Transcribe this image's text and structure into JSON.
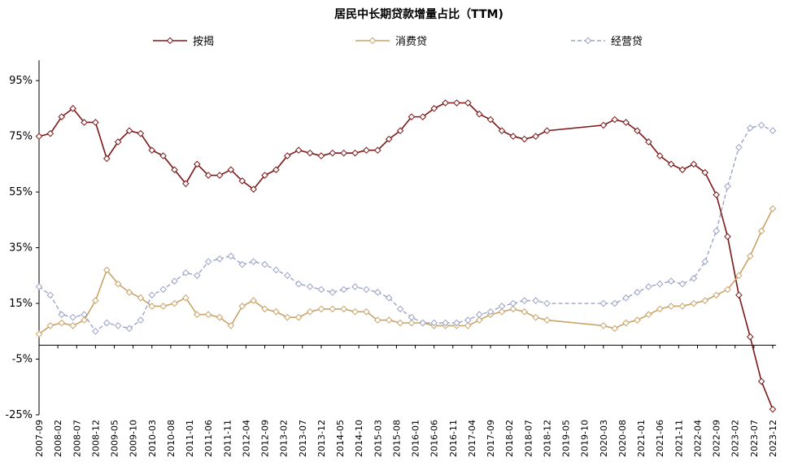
{
  "chart_data": {
    "type": "line",
    "title": "居民中长期贷款增量占比（TTM)",
    "xlabel": "",
    "ylabel": "",
    "ylim": [
      -25,
      100
    ],
    "yticks": [
      -25,
      -5,
      15,
      35,
      55,
      75,
      95
    ],
    "ytick_labels": [
      "-25%",
      "-5%",
      "15%",
      "35%",
      "55%",
      "75%",
      "95%"
    ],
    "legend_position": "top",
    "grid": false,
    "x_start": "2007-09",
    "x_end": "2023-12",
    "x_tick_labels": [
      "2007-09",
      "2008-02",
      "2008-07",
      "2008-12",
      "2009-05",
      "2009-10",
      "2010-03",
      "2010-08",
      "2011-01",
      "2011-06",
      "2011-11",
      "2012-04",
      "2012-09",
      "2013-02",
      "2013-07",
      "2013-12",
      "2014-05",
      "2014-10",
      "2015-03",
      "2015-08",
      "2016-01",
      "2016-06",
      "2016-11",
      "2017-04",
      "2017-09",
      "2018-02",
      "2018-07",
      "2018-12",
      "2019-05",
      "2019-10",
      "2020-03",
      "2020-08",
      "2021-01",
      "2021-06",
      "2021-11",
      "2022-04",
      "2022-09",
      "2023-02",
      "2023-07",
      "2023-12"
    ],
    "series": [
      {
        "name": "按揭",
        "color": "#7b1818",
        "dash": "solid",
        "marker": "diamond",
        "x": [
          "2007-09",
          "2007-12",
          "2008-03",
          "2008-06",
          "2008-09",
          "2008-12",
          "2009-03",
          "2009-06",
          "2009-09",
          "2009-12",
          "2010-03",
          "2010-06",
          "2010-09",
          "2010-12",
          "2011-03",
          "2011-06",
          "2011-09",
          "2011-12",
          "2012-03",
          "2012-06",
          "2012-09",
          "2012-12",
          "2013-03",
          "2013-06",
          "2013-09",
          "2013-12",
          "2014-03",
          "2014-06",
          "2014-09",
          "2014-12",
          "2015-03",
          "2015-06",
          "2015-09",
          "2015-12",
          "2016-03",
          "2016-06",
          "2016-09",
          "2016-12",
          "2017-03",
          "2017-06",
          "2017-09",
          "2017-12",
          "2018-03",
          "2018-06",
          "2018-09",
          "2018-12",
          "2020-03",
          "2020-06",
          "2020-09",
          "2020-12",
          "2021-03",
          "2021-06",
          "2021-09",
          "2021-12",
          "2022-03",
          "2022-06",
          "2022-09",
          "2022-12",
          "2023-03",
          "2023-06",
          "2023-09",
          "2023-12"
        ],
        "values": [
          75,
          76,
          82,
          85,
          80,
          80,
          67,
          73,
          77,
          76,
          70,
          68,
          63,
          58,
          65,
          61,
          61,
          63,
          59,
          56,
          61,
          63,
          68,
          70,
          69,
          68,
          69,
          69,
          69,
          70,
          70,
          74,
          77,
          82,
          82,
          85,
          87,
          87,
          87,
          83,
          81,
          77,
          75,
          74,
          75,
          77,
          79,
          81,
          80,
          77,
          73,
          68,
          65,
          63,
          65,
          62,
          54,
          39,
          18,
          3,
          -13,
          -23
        ]
      },
      {
        "name": "消费贷",
        "color": "#c9a46a",
        "dash": "solid",
        "marker": "diamond",
        "x": [
          "2007-09",
          "2007-12",
          "2008-03",
          "2008-06",
          "2008-09",
          "2008-12",
          "2009-03",
          "2009-06",
          "2009-09",
          "2009-12",
          "2010-03",
          "2010-06",
          "2010-09",
          "2010-12",
          "2011-03",
          "2011-06",
          "2011-09",
          "2011-12",
          "2012-03",
          "2012-06",
          "2012-09",
          "2012-12",
          "2013-03",
          "2013-06",
          "2013-09",
          "2013-12",
          "2014-03",
          "2014-06",
          "2014-09",
          "2014-12",
          "2015-03",
          "2015-06",
          "2015-09",
          "2015-12",
          "2016-03",
          "2016-06",
          "2016-09",
          "2016-12",
          "2017-03",
          "2017-06",
          "2017-09",
          "2017-12",
          "2018-03",
          "2018-06",
          "2018-09",
          "2018-12",
          "2020-03",
          "2020-06",
          "2020-09",
          "2020-12",
          "2021-03",
          "2021-06",
          "2021-09",
          "2021-12",
          "2022-03",
          "2022-06",
          "2022-09",
          "2022-12",
          "2023-03",
          "2023-06",
          "2023-09",
          "2023-12"
        ],
        "values": [
          4,
          7,
          8,
          7,
          9,
          16,
          27,
          22,
          19,
          17,
          14,
          14,
          15,
          17,
          11,
          11,
          10,
          7,
          14,
          16,
          13,
          12,
          10,
          10,
          12,
          13,
          13,
          13,
          12,
          12,
          9,
          9,
          8,
          8,
          8,
          7,
          7,
          7,
          7,
          9,
          11,
          12,
          13,
          12,
          10,
          9,
          7,
          6,
          8,
          9,
          11,
          13,
          14,
          14,
          15,
          16,
          18,
          20,
          25,
          32,
          41,
          49
        ]
      },
      {
        "name": "经营贷",
        "color": "#9aa3c8",
        "dash": "dashed",
        "marker": "diamond",
        "x": [
          "2007-09",
          "2007-12",
          "2008-03",
          "2008-06",
          "2008-09",
          "2008-12",
          "2009-03",
          "2009-06",
          "2009-09",
          "2009-12",
          "2010-03",
          "2010-06",
          "2010-09",
          "2010-12",
          "2011-03",
          "2011-06",
          "2011-09",
          "2011-12",
          "2012-03",
          "2012-06",
          "2012-09",
          "2012-12",
          "2013-03",
          "2013-06",
          "2013-09",
          "2013-12",
          "2014-03",
          "2014-06",
          "2014-09",
          "2014-12",
          "2015-03",
          "2015-06",
          "2015-09",
          "2015-12",
          "2016-03",
          "2016-06",
          "2016-09",
          "2016-12",
          "2017-03",
          "2017-06",
          "2017-09",
          "2017-12",
          "2018-03",
          "2018-06",
          "2018-09",
          "2018-12",
          "2020-03",
          "2020-06",
          "2020-09",
          "2020-12",
          "2021-03",
          "2021-06",
          "2021-09",
          "2021-12",
          "2022-03",
          "2022-06",
          "2022-09",
          "2022-12",
          "2023-03",
          "2023-06",
          "2023-09",
          "2023-12"
        ],
        "values": [
          21,
          18,
          11,
          10,
          11,
          5,
          8,
          7,
          6,
          9,
          18,
          20,
          23,
          26,
          25,
          30,
          31,
          32,
          29,
          30,
          29,
          27,
          25,
          22,
          21,
          20,
          19,
          20,
          21,
          20,
          19,
          17,
          13,
          10,
          8,
          8,
          8,
          8,
          9,
          11,
          12,
          14,
          15,
          16,
          16,
          15,
          15,
          15,
          17,
          19,
          21,
          22,
          23,
          22,
          24,
          30,
          41,
          57,
          71,
          78,
          79,
          77
        ]
      }
    ]
  }
}
